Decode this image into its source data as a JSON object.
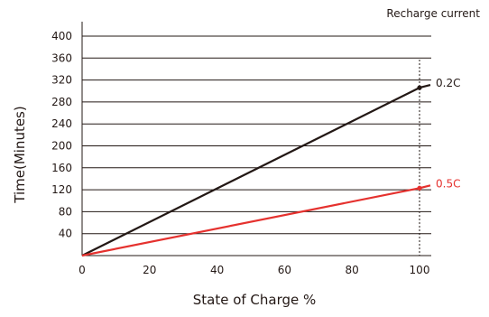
{
  "chart_data": {
    "type": "line",
    "title": "",
    "xlabel": "State of Charge %",
    "ylabel": "Time(Minutes)",
    "legend_title": "Recharge current",
    "xlim": [
      0,
      105
    ],
    "ylim": [
      0,
      400
    ],
    "xticks": [
      0,
      20,
      40,
      60,
      80,
      100
    ],
    "yticks": [
      40,
      80,
      120,
      160,
      200,
      240,
      280,
      320,
      360,
      400
    ],
    "grid": "horizontal",
    "reference_line_x": 100,
    "series": [
      {
        "name": "0.2C",
        "color": "#231815",
        "x": [
          0,
          100
        ],
        "y": [
          0,
          306
        ]
      },
      {
        "name": "0.5C",
        "color": "#e5312e",
        "x": [
          0,
          100
        ],
        "y": [
          0,
          123
        ]
      }
    ]
  }
}
